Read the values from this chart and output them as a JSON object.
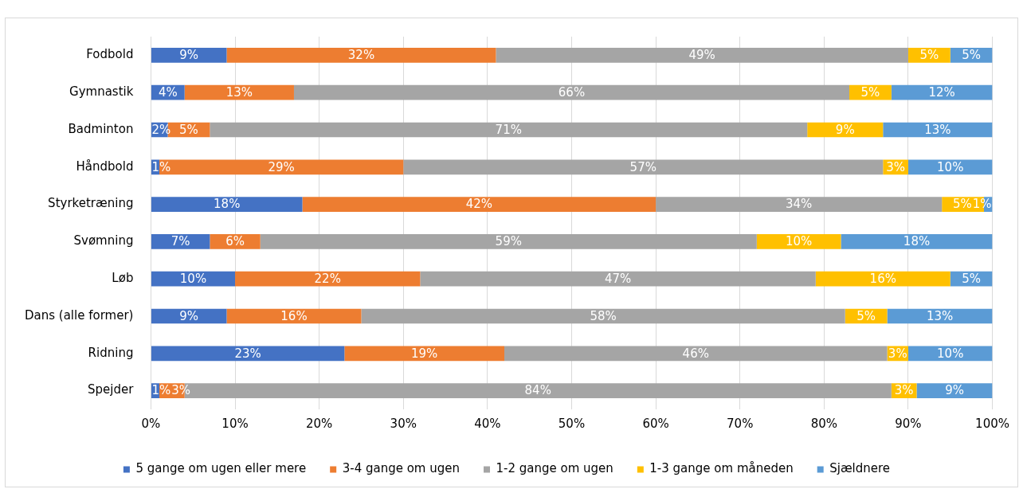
{
  "chart_data": {
    "type": "bar",
    "orientation": "horizontal",
    "stacked": true,
    "legend": "bottom",
    "grid": "x",
    "categories": [
      "Fodbold",
      "Gymnastik",
      "Badminton",
      "Håndbold",
      "Styrketræning",
      "Svømning",
      "Løb",
      "Dans (alle former)",
      "Ridning",
      "Spejder"
    ],
    "xlim": [
      0,
      100
    ],
    "xticks": [
      {
        "value": 0,
        "label": "0%"
      },
      {
        "value": 10,
        "label": "10%"
      },
      {
        "value": 20,
        "label": "20%"
      },
      {
        "value": 30,
        "label": "30%"
      },
      {
        "value": 40,
        "label": "40%"
      },
      {
        "value": 50,
        "label": "50%"
      },
      {
        "value": 60,
        "label": "60%"
      },
      {
        "value": 70,
        "label": "70%"
      },
      {
        "value": 80,
        "label": "80%"
      },
      {
        "value": 90,
        "label": "90%"
      },
      {
        "value": 100,
        "label": "100%"
      }
    ],
    "series": [
      {
        "name": "5 gange om ugen eller mere",
        "color": "#4472c4",
        "values": [
          9,
          4,
          2,
          1,
          18,
          7,
          10,
          9,
          23,
          1
        ],
        "value_labels": [
          "9%",
          "4%",
          "2%",
          "1%",
          "18%",
          "7%",
          "10%",
          "9%",
          "23%",
          "1%"
        ]
      },
      {
        "name": "3-4 gange om ugen",
        "color": "#ed7d31",
        "values": [
          32,
          13,
          5,
          29,
          42,
          6,
          22,
          16,
          19,
          3
        ],
        "value_labels": [
          "32%",
          "13%",
          "5%",
          "29%",
          "42%",
          "6%",
          "22%",
          "16%",
          "19%",
          "3%"
        ]
      },
      {
        "name": "1-2 gange om ugen",
        "color": "#a5a5a5",
        "values": [
          49,
          66,
          71,
          57,
          34,
          59,
          47,
          57.5,
          45.5,
          84
        ],
        "value_labels": [
          "49%",
          "66%",
          "71%",
          "57%",
          "34%",
          "59%",
          "47%",
          "58%",
          "46%",
          "84%"
        ]
      },
      {
        "name": "1-3 gange om måneden",
        "color": "#ffc000",
        "values": [
          5,
          5,
          9,
          3,
          5,
          10,
          16,
          5,
          2.5,
          3
        ],
        "value_labels": [
          "5%",
          "5%",
          "9%",
          "3%",
          "5%",
          "10%",
          "16%",
          "5%",
          "3%",
          "3%"
        ]
      },
      {
        "name": "Sjældnere",
        "color": "#5b9bd5",
        "values": [
          5,
          12,
          13,
          10,
          1,
          18,
          5,
          12.5,
          10,
          9
        ],
        "value_labels": [
          "5%",
          "12%",
          "13%",
          "10%",
          "1%",
          "18%",
          "5%",
          "13%",
          "10%",
          "9%"
        ]
      }
    ]
  }
}
